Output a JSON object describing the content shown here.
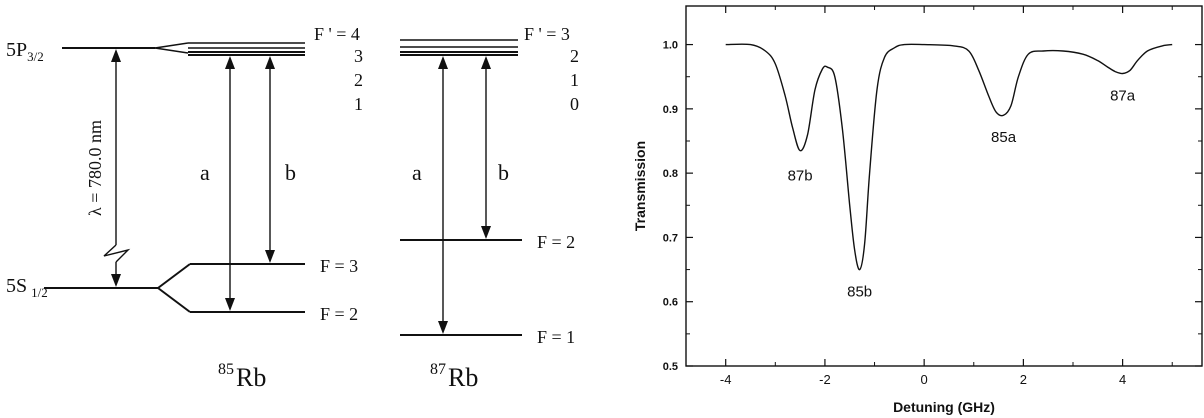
{
  "rb85": {
    "isotope_mass": "85",
    "isotope_symbol": "Rb",
    "excited_state": {
      "main": "5P",
      "sub": "3/2"
    },
    "ground_state": {
      "main": "5S",
      "sub": "1/2"
    },
    "wavelength_label": "λ = 780.0 nm",
    "excited_levels": [
      "F ' = 4",
      "3",
      "2",
      "1"
    ],
    "ground_levels": [
      "F = 3",
      "F = 2"
    ],
    "transitions": [
      "a",
      "b"
    ]
  },
  "rb87": {
    "isotope_mass": "87",
    "isotope_symbol": "Rb",
    "excited_levels": [
      "F ' = 3",
      "2",
      "1",
      "0"
    ],
    "ground_levels": [
      "F = 2",
      "F = 1"
    ],
    "transitions": [
      "a",
      "b"
    ]
  },
  "chart_data": {
    "type": "line",
    "title": "",
    "xlabel": "Detuning (GHz)",
    "ylabel": "Transmission",
    "xlim": [
      -4.8,
      5.6
    ],
    "ylim": [
      0.5,
      1.06
    ],
    "x_ticks": [
      -4,
      -2,
      0,
      2,
      4
    ],
    "y_ticks": [
      0.5,
      0.6,
      0.7,
      0.8,
      0.9,
      1.0
    ],
    "y_tick_labels": [
      "0.5",
      "0.6",
      "0.7",
      "0.8",
      "0.9",
      "1.0"
    ],
    "grid": false,
    "series": [
      {
        "x": [
          -4.0,
          -3.5,
          -3.2,
          -3.0,
          -2.8,
          -2.65,
          -2.5,
          -2.35,
          -2.2,
          -2.05,
          -1.95,
          -1.8,
          -1.65,
          -1.5,
          -1.4,
          -1.3,
          -1.2,
          -1.1,
          -0.95,
          -0.8,
          -0.6,
          -0.4,
          0.0,
          0.6,
          0.9,
          1.1,
          1.3,
          1.45,
          1.6,
          1.75,
          1.9,
          2.1,
          2.4,
          2.8,
          3.2,
          3.5,
          3.7,
          3.85,
          4.0,
          4.15,
          4.3,
          4.5,
          4.8,
          5.0
        ],
        "y": [
          1.0,
          1.0,
          0.99,
          0.97,
          0.92,
          0.87,
          0.835,
          0.86,
          0.93,
          0.962,
          0.965,
          0.95,
          0.87,
          0.75,
          0.68,
          0.65,
          0.69,
          0.8,
          0.93,
          0.98,
          0.995,
          1.0,
          1.0,
          0.998,
          0.99,
          0.96,
          0.92,
          0.895,
          0.89,
          0.905,
          0.95,
          0.985,
          0.99,
          0.99,
          0.985,
          0.975,
          0.965,
          0.958,
          0.955,
          0.96,
          0.975,
          0.99,
          0.998,
          1.0
        ]
      }
    ],
    "annotations": [
      {
        "text": "87b",
        "x": -2.5,
        "y": 0.81
      },
      {
        "text": "85b",
        "x": -1.3,
        "y": 0.63
      },
      {
        "text": "85a",
        "x": 1.6,
        "y": 0.87
      },
      {
        "text": "87a",
        "x": 4.0,
        "y": 0.935
      }
    ]
  }
}
